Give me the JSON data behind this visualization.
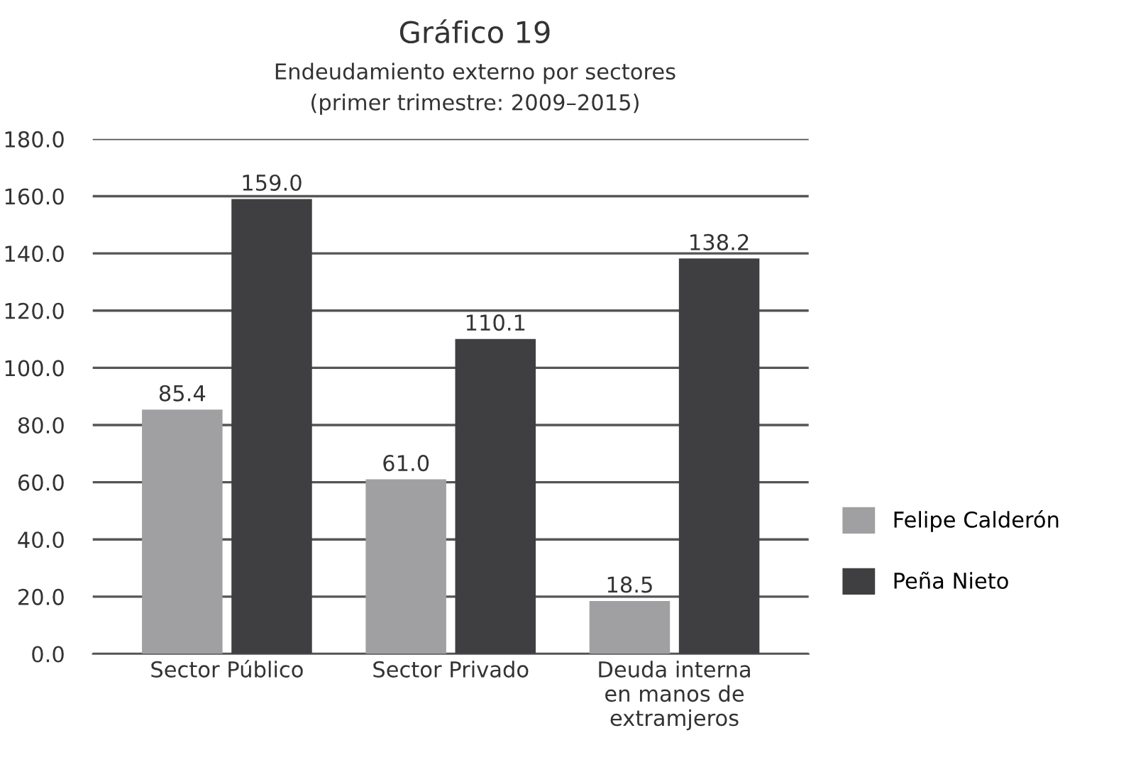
{
  "chart_data": {
    "type": "bar",
    "title": "Gráfico 19",
    "subtitle": "Endeudamiento externo por sectores\n(primer trimestre: 2009–2015)",
    "categories": [
      "Sector Público",
      "Sector Privado",
      "Deuda interna\nen manos de\nextramjeros"
    ],
    "series": [
      {
        "name": "Felipe Calderón",
        "color": "#a0a0a2",
        "values": [
          85.4,
          61,
          18.5
        ],
        "value_labels": [
          "85.4",
          "61.0",
          "18.5"
        ]
      },
      {
        "name": "Peña Nieto",
        "color": "#3f3f41",
        "values": [
          159,
          110.1,
          138.2
        ],
        "value_labels": [
          "159.0",
          "110.1",
          "138.2"
        ]
      }
    ],
    "ylim": [
      0,
      180
    ],
    "yticks": [
      {
        "value": 0,
        "label": "0.0"
      },
      {
        "value": 20,
        "label": "20.0"
      },
      {
        "value": 40,
        "label": "40.0"
      },
      {
        "value": 60,
        "label": "60.0"
      },
      {
        "value": 80,
        "label": "80.0"
      },
      {
        "value": 100,
        "label": "100.0"
      },
      {
        "value": 120,
        "label": "120.0"
      },
      {
        "value": 140,
        "label": "140.0"
      },
      {
        "value": 160,
        "label": "160.0"
      },
      {
        "value": 180,
        "label": "180.0"
      }
    ],
    "grid": "y",
    "legend": "right"
  }
}
